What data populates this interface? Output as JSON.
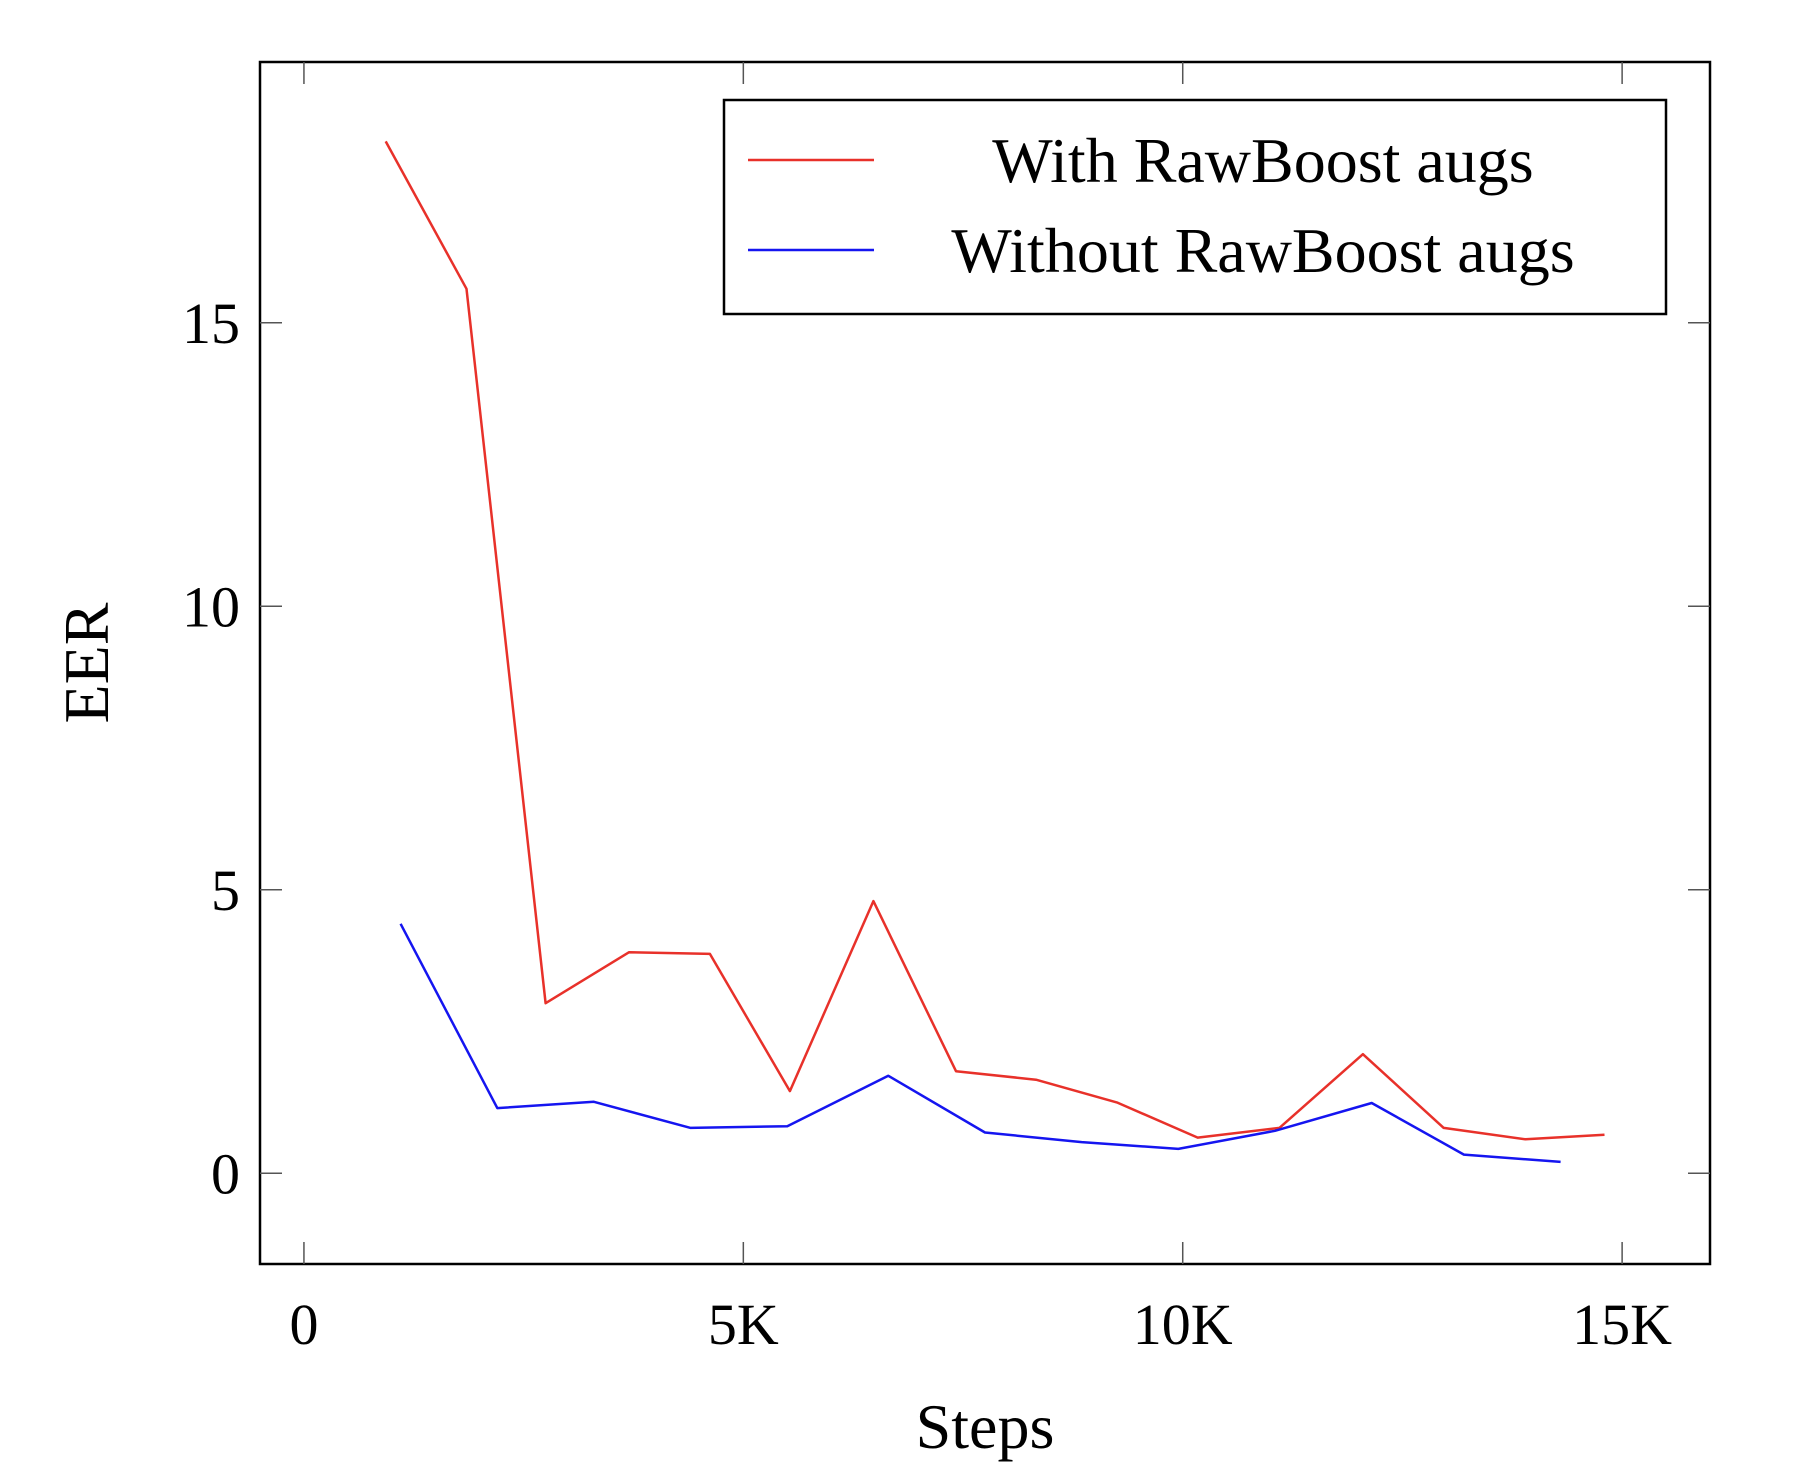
{
  "chart_data": {
    "type": "line",
    "title": "",
    "xlabel": "Steps",
    "ylabel": "EER",
    "xlim": [
      -500,
      16000
    ],
    "ylim": [
      -1.6,
      19.6
    ],
    "x_ticks": [
      {
        "value": 0,
        "label": "0"
      },
      {
        "value": 5000,
        "label": "5K"
      },
      {
        "value": 10000,
        "label": "10K"
      },
      {
        "value": 15000,
        "label": "15K"
      }
    ],
    "y_ticks": [
      {
        "value": 0,
        "label": "0"
      },
      {
        "value": 5,
        "label": "5"
      },
      {
        "value": 10,
        "label": "10"
      },
      {
        "value": 15,
        "label": "15"
      }
    ],
    "grid": false,
    "legend_position": "top-right",
    "series": [
      {
        "name": "With RawBoost augs",
        "color": "#e8312a",
        "x": [
          930,
          1850,
          2750,
          3700,
          4620,
          5530,
          6480,
          7420,
          8330,
          9250,
          10170,
          11100,
          12050,
          12970,
          13900,
          14800
        ],
        "y": [
          18.2,
          15.6,
          3.0,
          3.9,
          3.87,
          1.45,
          4.8,
          1.8,
          1.65,
          1.25,
          0.63,
          0.8,
          2.1,
          0.8,
          0.6,
          0.68
        ]
      },
      {
        "name": "Without RawBoost augs",
        "color": "#1515f0",
        "x": [
          1100,
          2200,
          3300,
          4400,
          5500,
          6650,
          7750,
          8850,
          9950,
          11050,
          12150,
          13200,
          14300
        ],
        "y": [
          4.4,
          1.15,
          1.26,
          0.8,
          0.83,
          1.72,
          0.72,
          0.55,
          0.43,
          0.75,
          1.24,
          0.33,
          0.2
        ]
      }
    ]
  }
}
